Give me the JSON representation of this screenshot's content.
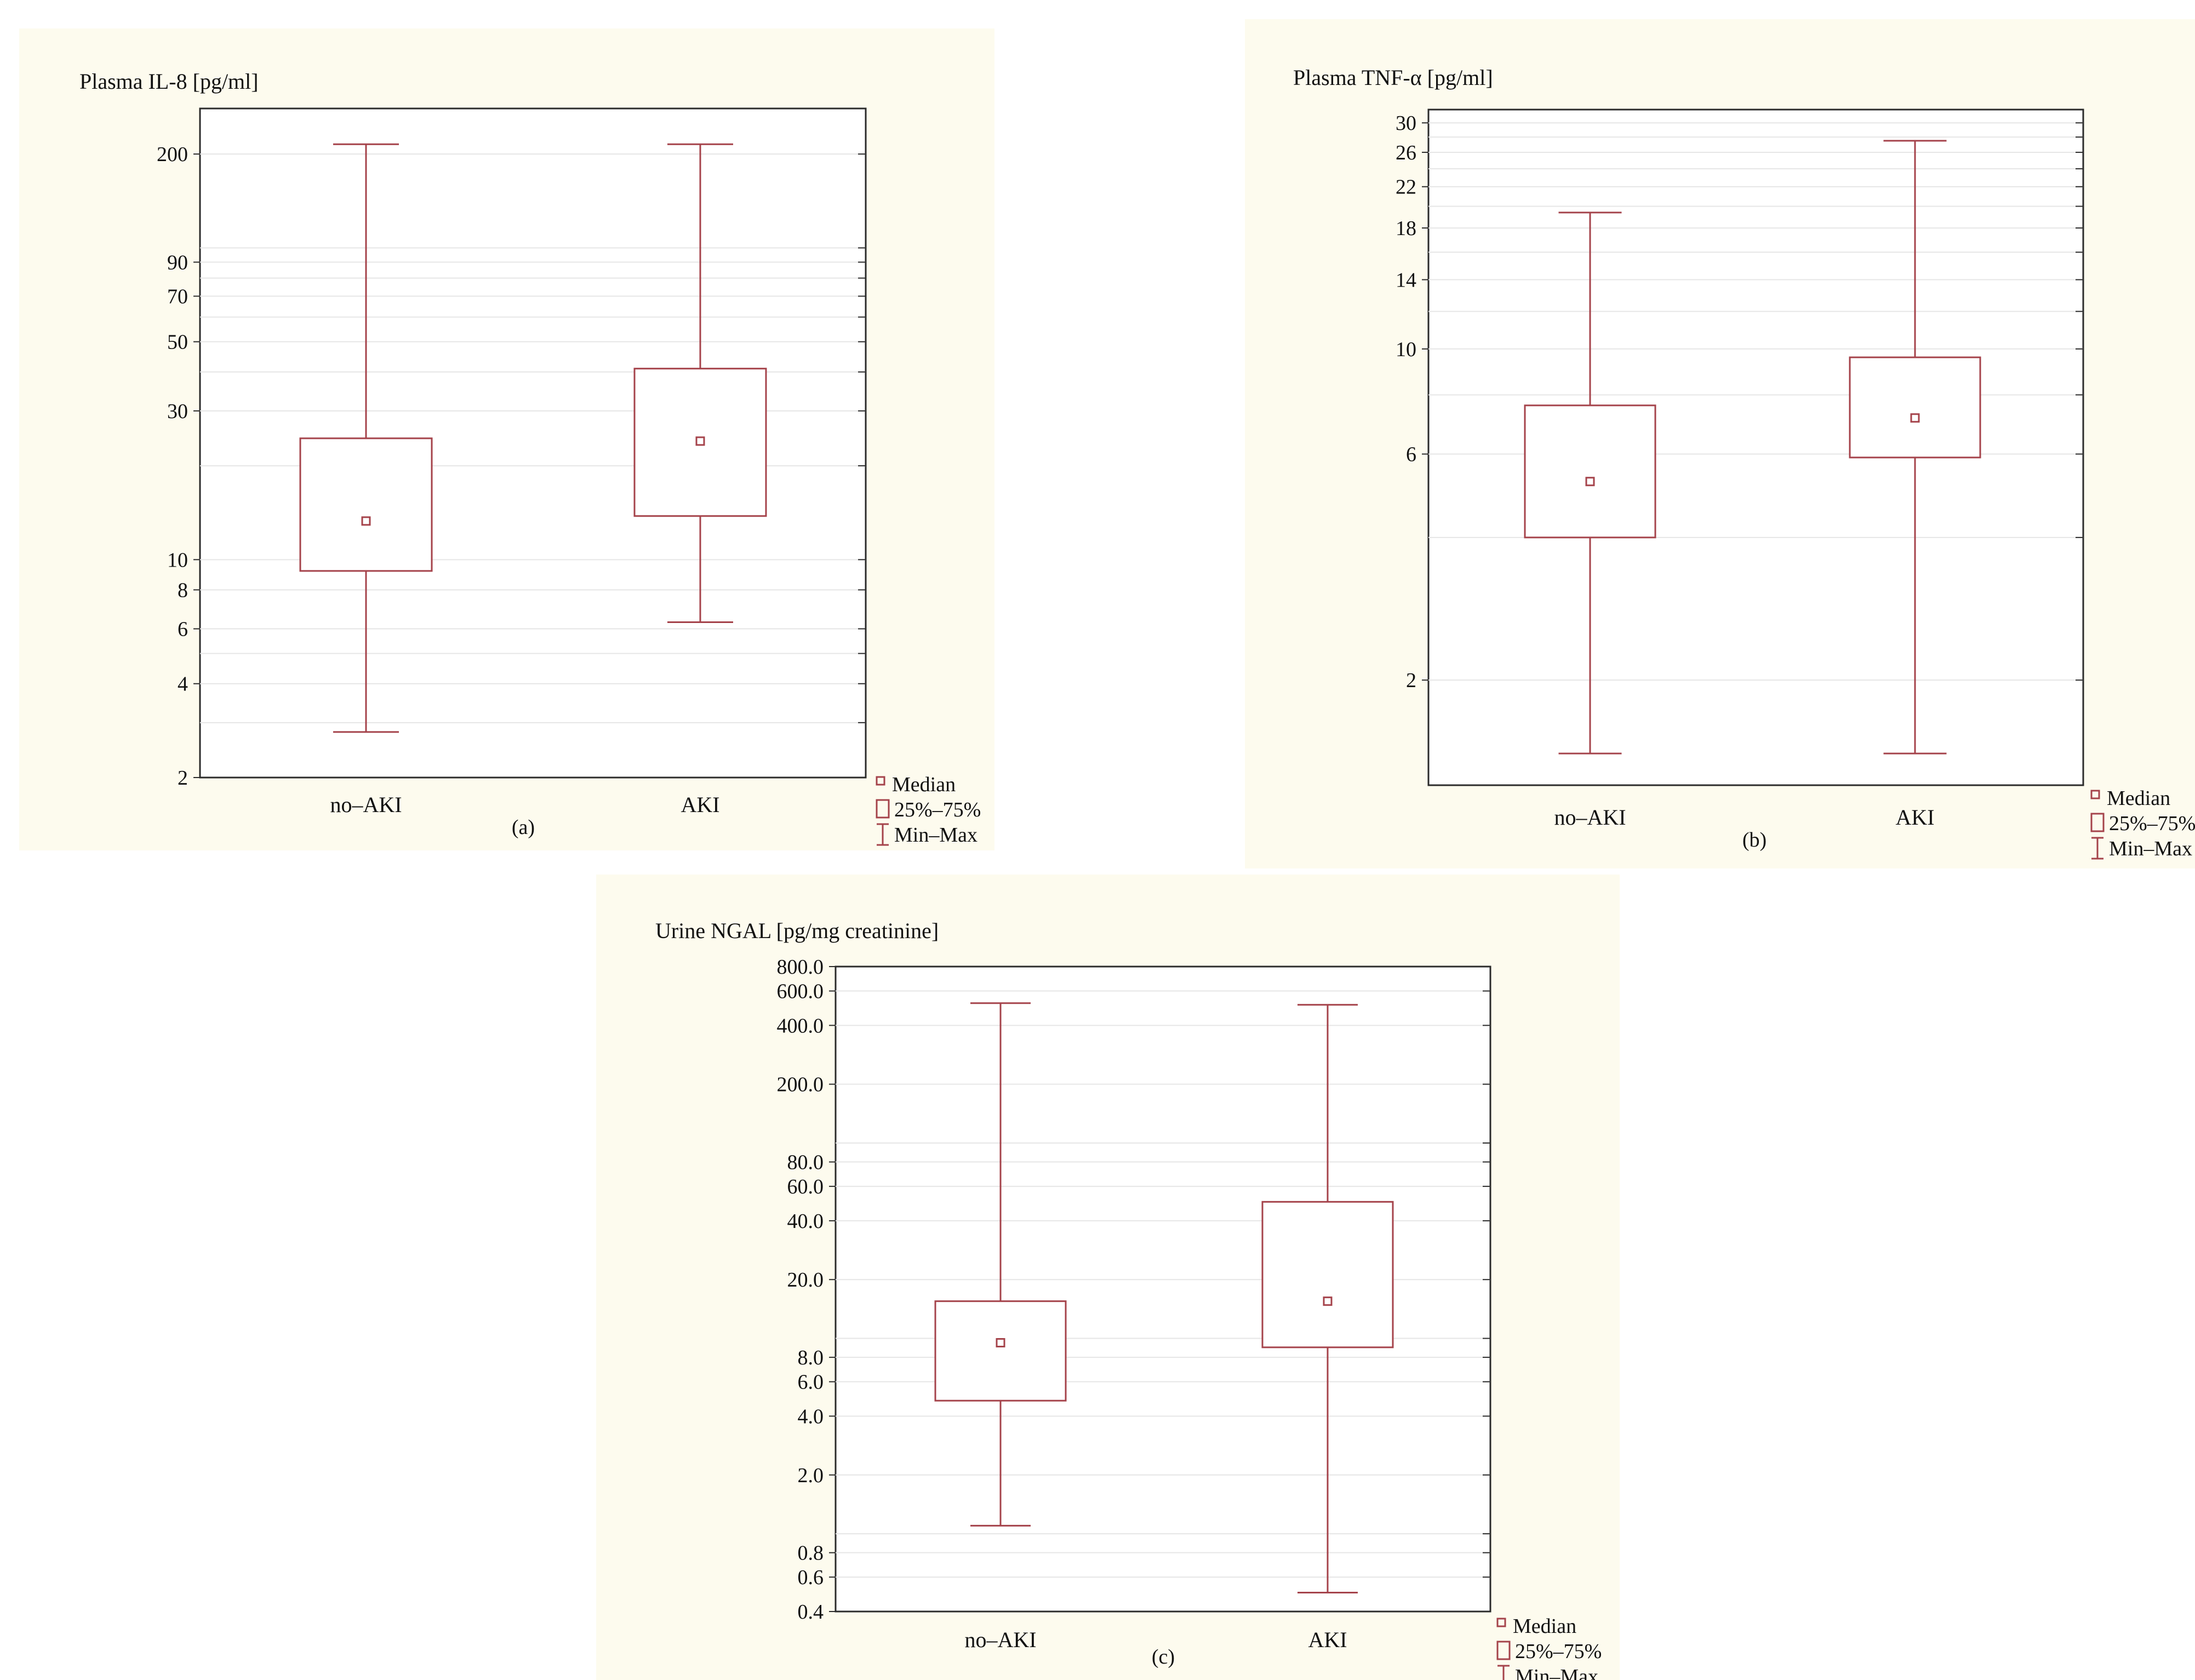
{
  "colors": {
    "box": "#a5434b",
    "background": "#fdfbee"
  },
  "legend": {
    "median": "Median",
    "quartiles": "25%–75%",
    "range": "Min–Max"
  },
  "chart_data": [
    {
      "type": "box",
      "panel_label": "(a)",
      "ylabel": "Plasma IL-8 [pg/ml]",
      "yscale": "log",
      "ylim": [
        2,
        280
      ],
      "ytick_labels": [
        "2",
        "4",
        "6",
        "8",
        "10",
        "30",
        "50",
        "70",
        "90",
        "200"
      ],
      "ytick_values": [
        2,
        4,
        6,
        8,
        10,
        30,
        50,
        70,
        90,
        200
      ],
      "grid_values": [
        3,
        5,
        20,
        40,
        60,
        80,
        100
      ],
      "categories": [
        "no–AKI",
        "AKI"
      ],
      "boxes": [
        {
          "min": 2.8,
          "q1": 9.2,
          "median": 13.3,
          "q3": 24.5,
          "max": 215
        },
        {
          "min": 6.3,
          "q1": 13.8,
          "median": 24.0,
          "q3": 41.0,
          "max": 215
        }
      ]
    },
    {
      "type": "box",
      "panel_label": "(b)",
      "ylabel": "Plasma TNF-α [pg/ml]",
      "yscale": "log",
      "ylim": [
        1.2,
        32
      ],
      "ytick_labels": [
        "2",
        "6",
        "10",
        "14",
        "18",
        "22",
        "26",
        "30"
      ],
      "ytick_values": [
        2,
        6,
        10,
        14,
        18,
        22,
        26,
        30
      ],
      "grid_values": [
        4,
        8,
        12,
        16,
        20,
        24,
        28
      ],
      "categories": [
        "no–AKI",
        "AKI"
      ],
      "boxes": [
        {
          "min": 1.4,
          "q1": 4.0,
          "median": 5.25,
          "q3": 7.6,
          "max": 19.4
        },
        {
          "min": 1.4,
          "q1": 5.9,
          "median": 7.15,
          "q3": 9.6,
          "max": 27.5
        }
      ]
    },
    {
      "type": "box",
      "panel_label": "(c)",
      "ylabel": "Urine NGAL [pg/mg creatinine]",
      "yscale": "log",
      "ylim": [
        0.4,
        800
      ],
      "ytick_labels": [
        "0.4",
        "0.6",
        "0.8",
        "2.0",
        "4.0",
        "6.0",
        "8.0",
        "20.0",
        "40.0",
        "60.0",
        "80.0",
        "200.0",
        "400.0",
        "600.0",
        "800.0"
      ],
      "ytick_values": [
        0.4,
        0.6,
        0.8,
        2.0,
        4.0,
        6.0,
        8.0,
        20.0,
        40.0,
        60.0,
        80.0,
        200.0,
        400.0,
        600.0,
        800.0
      ],
      "grid_values": [
        1,
        10,
        100
      ],
      "categories": [
        "no–AKI",
        "AKI"
      ],
      "boxes": [
        {
          "min": 1.1,
          "q1": 4.8,
          "median": 9.5,
          "q3": 15.5,
          "max": 520
        },
        {
          "min": 0.5,
          "q1": 9.0,
          "median": 15.5,
          "q3": 50.0,
          "max": 510
        }
      ]
    }
  ]
}
